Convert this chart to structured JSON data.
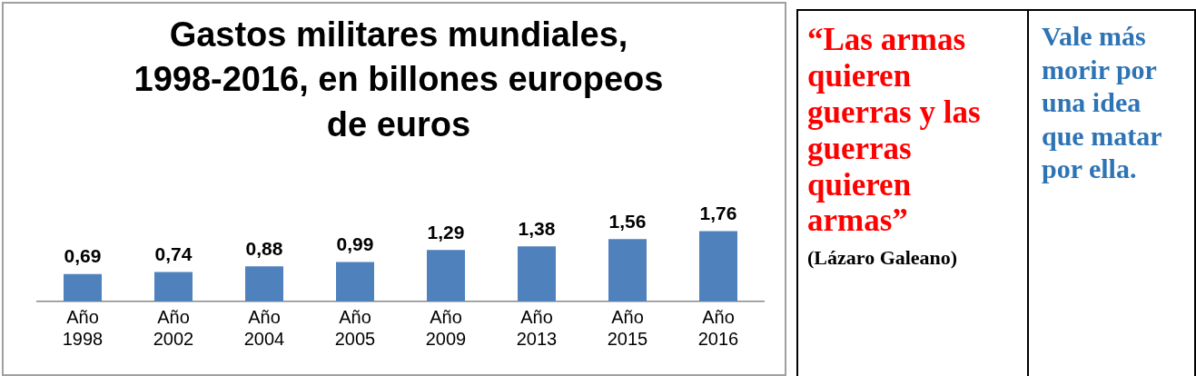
{
  "chart_data": [
    {
      "type": "bar",
      "title": "Gastos militares mundiales, 1998-2016, en billones europeos de euros",
      "categories": [
        "Año 1998",
        "Año 2002",
        "Año 2004",
        "Año 2005",
        "Año 2009",
        "Año 2013",
        "Año 2015",
        "Año 2016"
      ],
      "values": [
        0.69,
        0.74,
        0.88,
        0.99,
        1.29,
        1.38,
        1.56,
        1.76
      ],
      "value_labels": [
        "0,69",
        "0,74",
        "0,88",
        "0,99",
        "1,29",
        "1,38",
        "1,56",
        "1,76"
      ],
      "color": "#4f81bd",
      "legend": false
    },
    {
      "type": "other",
      "annotations": [
        "“Las armas quieren guerras  y las guerras quieren armas”",
        "(Lázaro Galeano)"
      ]
    },
    {
      "type": "other",
      "annotations": [
        "Vale más morir por una idea que matar por ella."
      ]
    }
  ]
}
